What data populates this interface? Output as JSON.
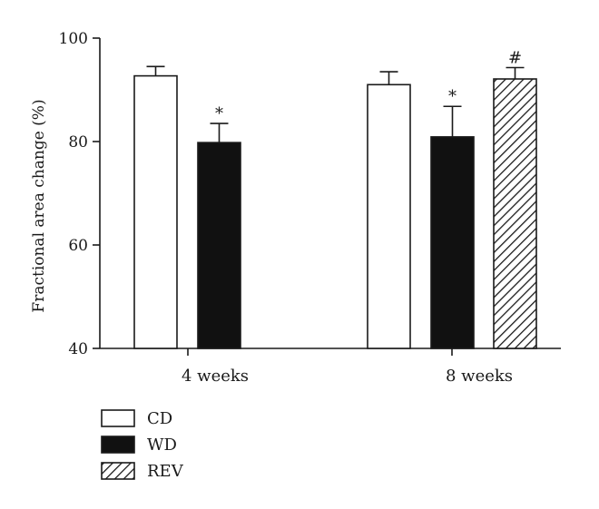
{
  "chart_data": {
    "type": "bar",
    "title": "",
    "xlabel": "",
    "ylabel": "Fractional area change (%)",
    "ylim": [
      40,
      100
    ],
    "yticks": [
      "40",
      "60",
      "80",
      "100"
    ],
    "groups": [
      "4 weeks",
      "8 weeks"
    ],
    "series": [
      {
        "name": "CD",
        "fill": "white"
      },
      {
        "name": "WD",
        "fill": "black"
      },
      {
        "name": "REV",
        "fill": "hatched"
      }
    ],
    "bars": [
      {
        "group": "4 weeks",
        "series": "CD",
        "value": 92.7,
        "error": 1.8,
        "annotation": ""
      },
      {
        "group": "4 weeks",
        "series": "WD",
        "value": 79.8,
        "error": 3.7,
        "annotation": "*"
      },
      {
        "group": "8 weeks",
        "series": "CD",
        "value": 91.0,
        "error": 2.5,
        "annotation": ""
      },
      {
        "group": "8 weeks",
        "series": "WD",
        "value": 80.9,
        "error": 5.9,
        "annotation": "*"
      },
      {
        "group": "8 weeks",
        "series": "REV",
        "value": 92.1,
        "error": 2.2,
        "annotation": "#"
      }
    ],
    "legend_position": "bottom-left"
  },
  "colors": {
    "axis": "#1a1a1a",
    "bar_outline": "#1a1a1a",
    "bar_fill_cd": "#ffffff",
    "bar_fill_wd": "#111111",
    "hatch": "#1a1a1a"
  }
}
